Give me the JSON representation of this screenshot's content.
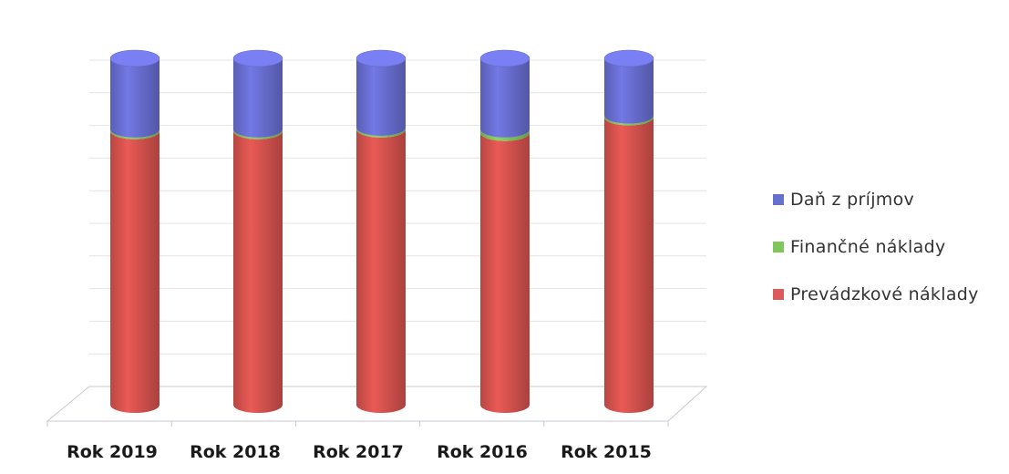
{
  "chart_data": {
    "type": "bar",
    "style": "stacked-100-percent-cylinder-3d",
    "categories": [
      "Rok 2019",
      "Rok 2018",
      "Rok 2017",
      "Rok 2016",
      "Rok 2015"
    ],
    "series": [
      {
        "name": "Prevádzkové náklady",
        "color": "#c0504d",
        "values": [
          79,
          79,
          79.5,
          78.5,
          83
        ]
      },
      {
        "name": "Finančné náklady",
        "color": "#9bbb59",
        "values": [
          0.5,
          0.5,
          0.5,
          1.0,
          0.5
        ]
      },
      {
        "name": "Daň z príjmov",
        "color": "#8064a2",
        "values": [
          20.5,
          20.5,
          20.0,
          20.5,
          16.5
        ]
      }
    ],
    "ylim": [
      0,
      100
    ],
    "grid": true,
    "legend_position": "right"
  },
  "legend": {
    "items": [
      {
        "label": "Daň z príjmov",
        "color": "#6670d1"
      },
      {
        "label": "Finančné náklady",
        "color": "#7fc75a"
      },
      {
        "label": "Prevádzkové náklady",
        "color": "#dd5a5a"
      }
    ]
  }
}
